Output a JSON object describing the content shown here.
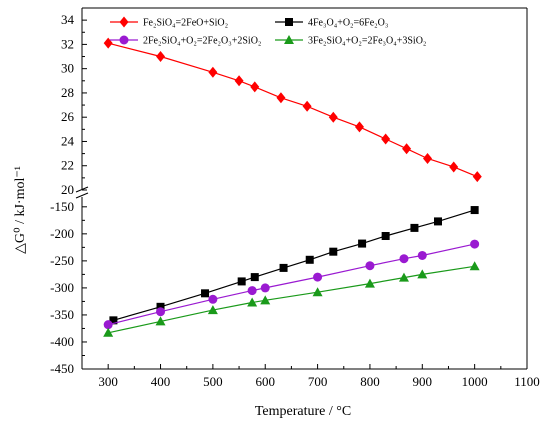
{
  "chart_data": {
    "type": "line",
    "xlabel": "Temperature / °C",
    "ylabel": "△G⁰ / kJ·mol⁻¹",
    "xlim": [
      250,
      1100
    ],
    "x_ticks": [
      "300",
      "400",
      "500",
      "600",
      "700",
      "800",
      "900",
      "1000",
      "1100"
    ],
    "upper_panel": {
      "ylim": [
        20,
        35
      ],
      "y_ticks": [
        "20",
        "22",
        "24",
        "26",
        "28",
        "30",
        "32",
        "34"
      ]
    },
    "lower_panel": {
      "ylim": [
        -450,
        -130
      ],
      "y_ticks": [
        "-450",
        "-400",
        "-350",
        "-300",
        "-250",
        "-200",
        "-150"
      ]
    },
    "axis_break": true,
    "legend_position": "top, two columns",
    "series": [
      {
        "name": "Fe₂SiO₄=2FeO+SiO₂",
        "color": "#ff0000",
        "marker": "diamond",
        "panel": "upper",
        "x": [
          300,
          400,
          500,
          550,
          580,
          630,
          680,
          730,
          780,
          830,
          870,
          910,
          960,
          1005
        ],
        "y": [
          32.1,
          31.0,
          29.7,
          29.0,
          28.5,
          27.6,
          26.9,
          26.0,
          25.2,
          24.2,
          23.4,
          22.6,
          21.9,
          21.1
        ]
      },
      {
        "name": "4Fe₃O₄+O₂=6Fe₂O₃",
        "color": "#000000",
        "marker": "square",
        "panel": "lower",
        "x": [
          310,
          400,
          485,
          555,
          580,
          635,
          685,
          730,
          785,
          830,
          885,
          930,
          1000
        ],
        "y": [
          -360,
          -335,
          -310,
          -288,
          -280,
          -263,
          -248,
          -233,
          -218,
          -204,
          -189,
          -177,
          -156
        ]
      },
      {
        "name": "2Fe₂SiO₄+O₂=2Fe₂O₃+2SiO₂",
        "color": "#9a1ad1",
        "marker": "circle",
        "panel": "lower",
        "x": [
          300,
          400,
          500,
          575,
          600,
          700,
          800,
          865,
          900,
          1000
        ],
        "y": [
          -368,
          -344,
          -321,
          -305,
          -300,
          -280,
          -259,
          -246,
          -240,
          -219
        ]
      },
      {
        "name": "3Fe₂SiO₄+O₂=2Fe₃O₄+3SiO₂",
        "color": "#1a9a1a",
        "marker": "triangle",
        "panel": "lower",
        "x": [
          300,
          400,
          500,
          575,
          600,
          700,
          800,
          865,
          900,
          1000
        ],
        "y": [
          -383,
          -362,
          -341,
          -327,
          -323,
          -308,
          -292,
          -281,
          -275,
          -260
        ]
      }
    ]
  }
}
